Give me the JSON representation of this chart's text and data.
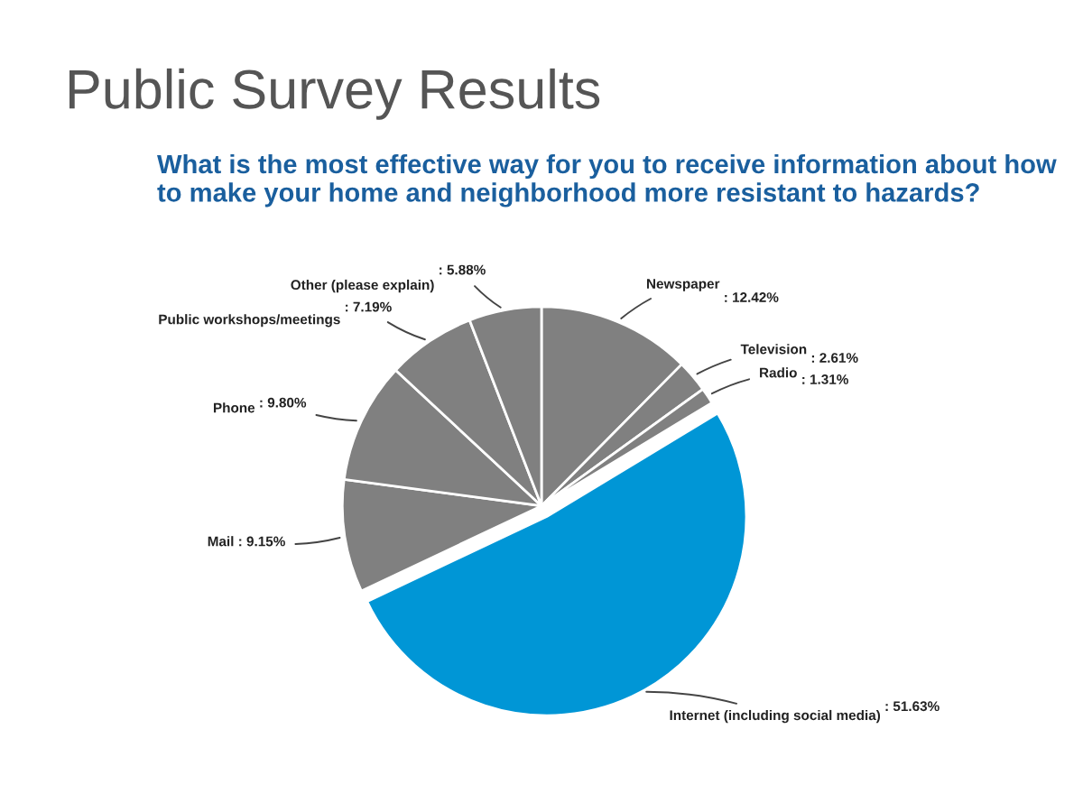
{
  "chart_data": {
    "type": "pie",
    "title": "Public Survey Results",
    "subtitle": "What is the most effective way for you to receive information about how to make your home and neighborhood more resistant to hazards?",
    "categories": [
      "Newspaper",
      "Television",
      "Radio",
      "Internet (including social media)",
      "Mail",
      "Phone",
      "Public workshops/meetings",
      "Other (please explain)"
    ],
    "values": [
      12.42,
      2.61,
      1.31,
      51.63,
      9.15,
      9.8,
      7.19,
      5.88
    ],
    "colors": [
      "#808080",
      "#808080",
      "#808080",
      "#0096d6",
      "#808080",
      "#808080",
      "#808080",
      "#808080"
    ],
    "value_labels": [
      ": 12.42%",
      ": 2.61%",
      ": 1.31%",
      ": 51.63%",
      ": 9.15%",
      ": 9.80%",
      ": 7.19%",
      ": 5.88%"
    ]
  }
}
